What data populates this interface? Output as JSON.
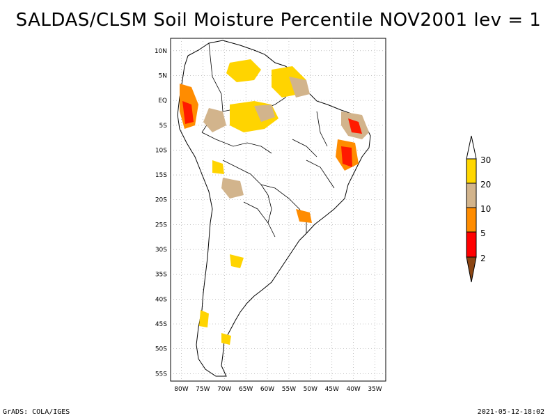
{
  "title": "SALDAS/CLSM Soil Moisture Percentile NOV2001 lev = 1",
  "footer": {
    "left": "GrADS: COLA/IGES",
    "right": "2021-05-12-18:02"
  },
  "map": {
    "lat_labels": [
      "10N",
      "5N",
      "EQ",
      "5S",
      "10S",
      "15S",
      "20S",
      "25S",
      "30S",
      "35S",
      "40S",
      "45S",
      "50S",
      "55S"
    ],
    "lat_values": [
      10,
      5,
      0,
      -5,
      -10,
      -15,
      -20,
      -25,
      -30,
      -35,
      -40,
      -45,
      -50,
      -55
    ],
    "lon_labels": [
      "80W",
      "75W",
      "70W",
      "65W",
      "60W",
      "55W",
      "50W",
      "45W",
      "40W",
      "35W"
    ],
    "lon_values": [
      -80,
      -75,
      -70,
      -65,
      -60,
      -55,
      -50,
      -45,
      -40,
      -35
    ]
  },
  "colorbar": {
    "labels": [
      "30",
      "20",
      "10",
      "5",
      "2"
    ],
    "colors": {
      "top": "#ffffff",
      "c30": "#ffd700",
      "c20": "#d2b48c",
      "c10": "#ff8c00",
      "c5": "#ff0000",
      "c2": "#8b4513"
    }
  },
  "colors": {
    "yellow": "#ffd400",
    "tan": "#d2b48c",
    "orange": "#ff8c00",
    "red": "#ff1a00",
    "brown": "#8b4513"
  }
}
